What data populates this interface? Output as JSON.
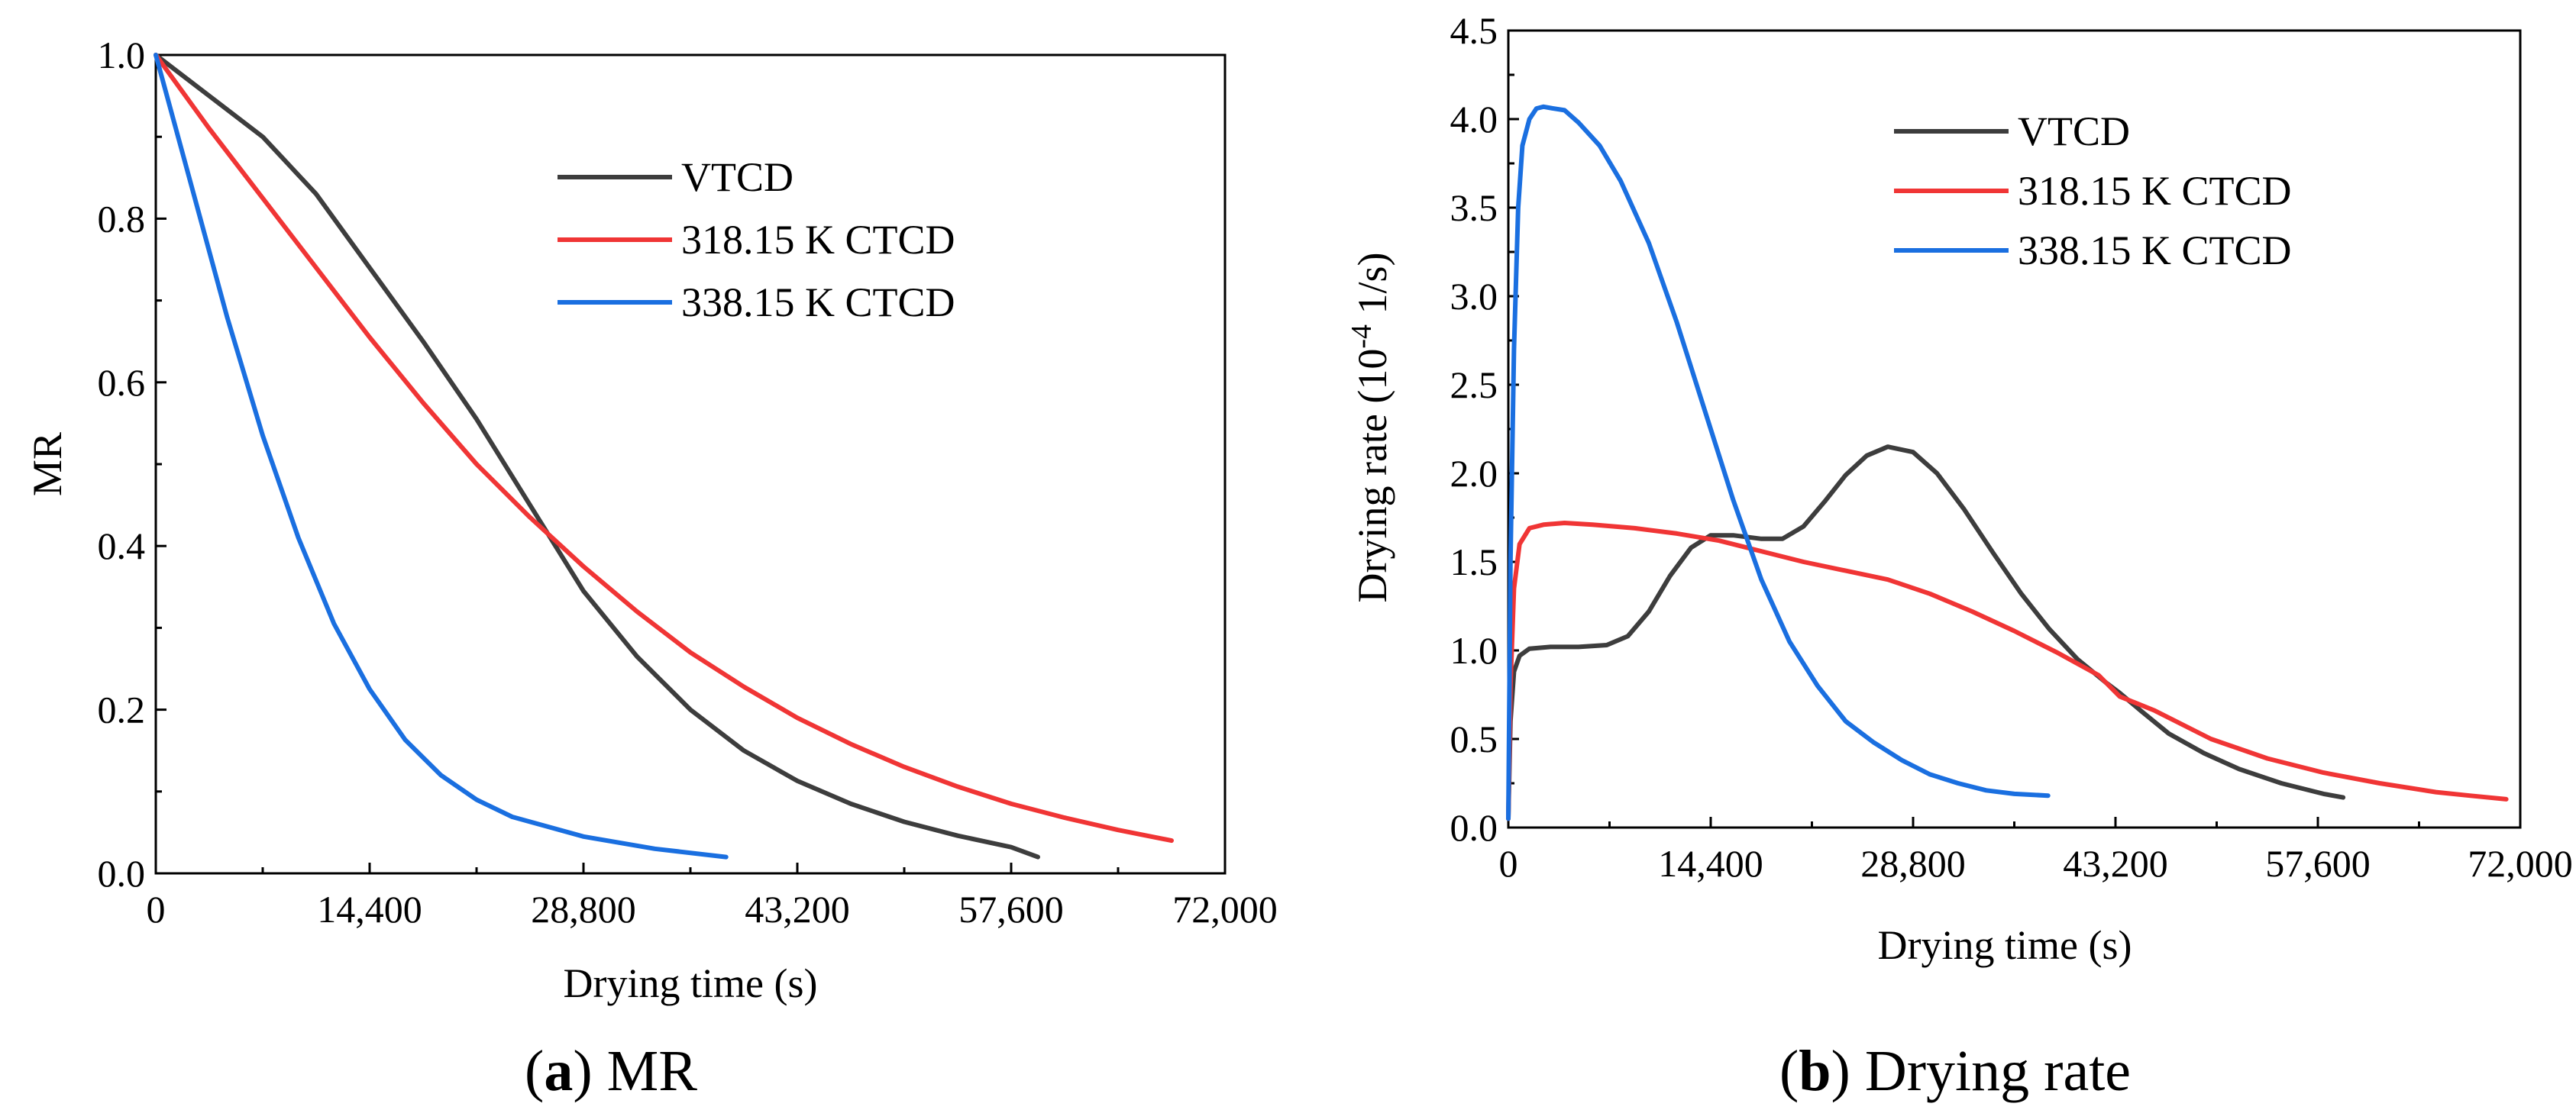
{
  "colors": {
    "VTCD": "#3d3d3d",
    "318.15 K CTCD": "#f03535",
    "338.15 K CTCD": "#1a6fe0"
  },
  "chart_data": [
    {
      "type": "line",
      "caption_letter": "a",
      "caption_text": " MR",
      "title": "",
      "xlabel": "Drying time (s)",
      "ylabel": "MR",
      "xlim": [
        0,
        72000
      ],
      "ylim": [
        0,
        1.0
      ],
      "xticks": [
        0,
        14400,
        28800,
        43200,
        57600,
        72000
      ],
      "xtick_labels": [
        "0",
        "14,400",
        "28,800",
        "43,200",
        "57,600",
        "72,000"
      ],
      "yticks": [
        0,
        0.2,
        0.4,
        0.6,
        0.8,
        1.0
      ],
      "ytick_labels": [
        "0.0",
        "0.2",
        "0.4",
        "0.6",
        "0.8",
        "1.0"
      ],
      "legend_position": "top-right",
      "series": [
        {
          "name": "VTCD",
          "x": [
            0,
            3600,
            7200,
            10800,
            14400,
            18000,
            21600,
            25200,
            28800,
            32400,
            36000,
            39600,
            43200,
            46800,
            50400,
            54000,
            57600,
            59400
          ],
          "y": [
            1.0,
            0.95,
            0.9,
            0.83,
            0.74,
            0.65,
            0.555,
            0.45,
            0.345,
            0.265,
            0.2,
            0.15,
            0.113,
            0.085,
            0.063,
            0.046,
            0.032,
            0.02
          ]
        },
        {
          "name": "318.15 K CTCD",
          "x": [
            0,
            3600,
            7200,
            10800,
            14400,
            18000,
            21600,
            25200,
            28800,
            32400,
            36000,
            39600,
            43200,
            46800,
            50400,
            54000,
            57600,
            61200,
            64800,
            68400
          ],
          "y": [
            1.0,
            0.91,
            0.825,
            0.74,
            0.655,
            0.575,
            0.5,
            0.435,
            0.375,
            0.32,
            0.27,
            0.228,
            0.19,
            0.158,
            0.13,
            0.106,
            0.085,
            0.068,
            0.053,
            0.04
          ]
        },
        {
          "name": "338.15 K CTCD",
          "x": [
            0,
            2400,
            4800,
            7200,
            9600,
            12000,
            14400,
            16800,
            19200,
            21600,
            24000,
            28800,
            33600,
            38400
          ],
          "y": [
            1.0,
            0.84,
            0.68,
            0.535,
            0.41,
            0.305,
            0.225,
            0.163,
            0.12,
            0.09,
            0.069,
            0.045,
            0.03,
            0.02
          ]
        }
      ]
    },
    {
      "type": "line",
      "caption_letter": "b",
      "caption_text": " Drying rate",
      "title": "",
      "xlabel": "Drying time (s)",
      "ylabel_main": "Drying rate (10",
      "ylabel_sup": "-4",
      "ylabel_tail": " 1/s)",
      "xlim": [
        0,
        72000
      ],
      "ylim": [
        0,
        4.5
      ],
      "xticks": [
        0,
        14400,
        28800,
        43200,
        57600,
        72000
      ],
      "xtick_labels": [
        "0",
        "14,400",
        "28,800",
        "43,200",
        "57,600",
        "72,000"
      ],
      "yticks": [
        0,
        0.5,
        1.0,
        1.5,
        2.0,
        2.5,
        3.0,
        3.5,
        4.0,
        4.5
      ],
      "ytick_labels": [
        "0.0",
        "0.5",
        "1.0",
        "1.5",
        "2.0",
        "2.5",
        "3.0",
        "3.5",
        "4.0",
        "4.5"
      ],
      "legend_position": "top-right",
      "series": [
        {
          "name": "VTCD",
          "x": [
            0,
            150,
            400,
            800,
            1500,
            3000,
            5000,
            7000,
            8500,
            10000,
            11500,
            13000,
            14400,
            16000,
            18000,
            19500,
            21000,
            22500,
            24000,
            25500,
            27000,
            28800,
            30500,
            32400,
            34500,
            36500,
            38500,
            40500,
            42500,
            43500,
            45000,
            47000,
            49500,
            52000,
            55000,
            58000,
            59400
          ],
          "y": [
            0.05,
            0.6,
            0.88,
            0.97,
            1.01,
            1.02,
            1.02,
            1.03,
            1.08,
            1.22,
            1.42,
            1.58,
            1.65,
            1.65,
            1.63,
            1.63,
            1.7,
            1.84,
            1.99,
            2.1,
            2.15,
            2.12,
            2.0,
            1.8,
            1.55,
            1.32,
            1.12,
            0.95,
            0.82,
            0.76,
            0.66,
            0.53,
            0.42,
            0.33,
            0.25,
            0.19,
            0.17
          ]
        },
        {
          "name": "318.15 K CTCD",
          "x": [
            0,
            150,
            400,
            800,
            1500,
            2500,
            4000,
            6000,
            9000,
            12000,
            15000,
            18000,
            21000,
            24000,
            27000,
            30000,
            33000,
            36000,
            39000,
            42000,
            43500,
            46000,
            50000,
            54000,
            58000,
            62000,
            66000,
            68400,
            71000
          ],
          "y": [
            0.05,
            0.8,
            1.35,
            1.6,
            1.69,
            1.71,
            1.72,
            1.71,
            1.69,
            1.66,
            1.62,
            1.56,
            1.5,
            1.45,
            1.4,
            1.32,
            1.22,
            1.11,
            0.99,
            0.86,
            0.74,
            0.66,
            0.5,
            0.39,
            0.31,
            0.25,
            0.2,
            0.18,
            0.16
          ]
        },
        {
          "name": "338.15 K CTCD",
          "x": [
            0,
            150,
            400,
            700,
            1000,
            1500,
            2000,
            2500,
            3200,
            4000,
            5000,
            6500,
            8000,
            10000,
            12000,
            14000,
            16000,
            18000,
            20000,
            22000,
            24000,
            26000,
            28000,
            30000,
            32000,
            34000,
            36000,
            38400
          ],
          "y": [
            0.05,
            1.5,
            2.7,
            3.5,
            3.85,
            4.0,
            4.06,
            4.07,
            4.06,
            4.05,
            3.98,
            3.85,
            3.65,
            3.3,
            2.85,
            2.35,
            1.85,
            1.4,
            1.05,
            0.8,
            0.6,
            0.48,
            0.38,
            0.3,
            0.25,
            0.21,
            0.19,
            0.18
          ]
        }
      ]
    }
  ]
}
